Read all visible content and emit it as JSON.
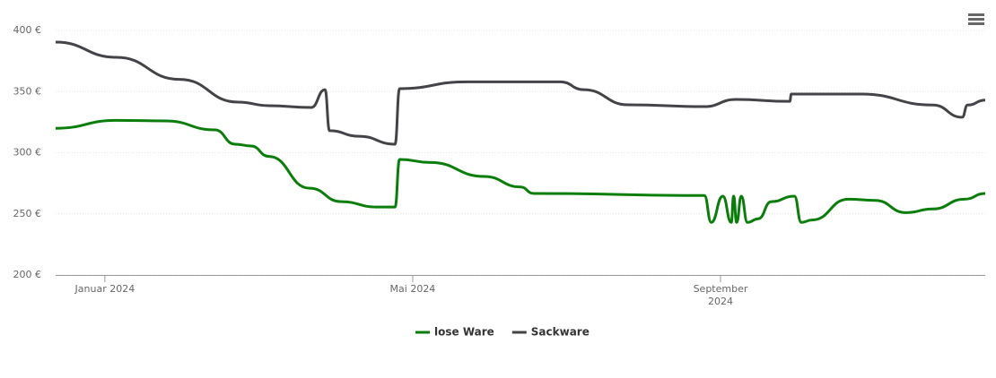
{
  "chart_data": {
    "type": "line",
    "xlim": [
      0.36,
      12.44
    ],
    "xticks": [
      {
        "value": 1,
        "label": "Januar 2024"
      },
      {
        "value": 5,
        "label": "Mai 2024"
      },
      {
        "value": 9,
        "label": "September 2024"
      }
    ],
    "ylim": [
      200,
      400
    ],
    "yticks": [
      {
        "value": 200,
        "label": "200 €"
      },
      {
        "value": 250,
        "label": "250 €"
      },
      {
        "value": 300,
        "label": "300 €"
      },
      {
        "value": 350,
        "label": "350 €"
      },
      {
        "value": 400,
        "label": "400 €"
      }
    ],
    "grid": true,
    "legend": "bottom",
    "series": [
      {
        "name": "lose Ware",
        "color": "#0a7d0a",
        "x": [
          0.36,
          1.15,
          1.79,
          2.43,
          2.69,
          2.9,
          3.13,
          3.66,
          4.07,
          4.53,
          4.77,
          4.83,
          5.23,
          5.93,
          6.4,
          6.57,
          8.79,
          8.88,
          9.03,
          9.14,
          9.17,
          9.21,
          9.27,
          9.35,
          9.49,
          9.66,
          9.96,
          10.05,
          10.19,
          10.66,
          11.01,
          11.41,
          11.76,
          12.17,
          12.44
        ],
        "values": [
          320,
          326.5,
          326,
          318.7,
          307,
          305.5,
          297,
          271,
          260,
          255.6,
          255.6,
          294.5,
          292,
          280.6,
          272,
          266.7,
          265,
          243,
          264.5,
          243,
          264.5,
          243,
          264.5,
          243,
          246,
          260,
          264.5,
          243,
          245,
          262,
          261,
          251,
          254,
          262,
          266.7
        ]
      },
      {
        "name": "Sackware",
        "color": "#434348",
        "x": [
          0.36,
          1.15,
          1.97,
          2.73,
          3.13,
          3.68,
          3.86,
          3.92,
          4.3,
          4.77,
          4.83,
          5.7,
          6.92,
          7.22,
          7.8,
          8.79,
          9.2,
          9.9,
          9.92,
          10.83,
          11.76,
          12.14,
          12.21,
          12.44
        ],
        "values": [
          390.5,
          378,
          360,
          341.4,
          338.5,
          337,
          351.6,
          318,
          313.5,
          307,
          352.4,
          358,
          358,
          351.6,
          339.2,
          337.7,
          343.6,
          342,
          348,
          348,
          339,
          329,
          339,
          343
        ]
      }
    ]
  }
}
